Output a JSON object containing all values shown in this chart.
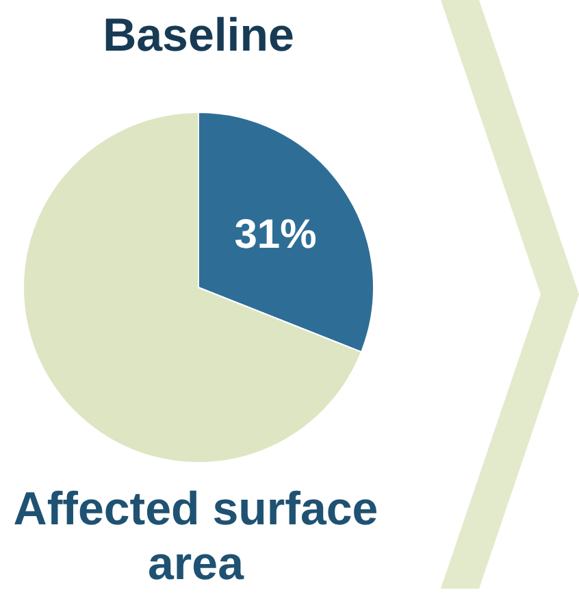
{
  "chart_data": {
    "type": "pie",
    "title": "Baseline",
    "categories": [
      null,
      null
    ],
    "values": [
      31,
      69
    ],
    "colors": [
      "#2e6e96",
      "#dde5c3"
    ],
    "value_labels": [
      "31%",
      null
    ],
    "annotations": [
      "Affected surface area"
    ]
  }
}
